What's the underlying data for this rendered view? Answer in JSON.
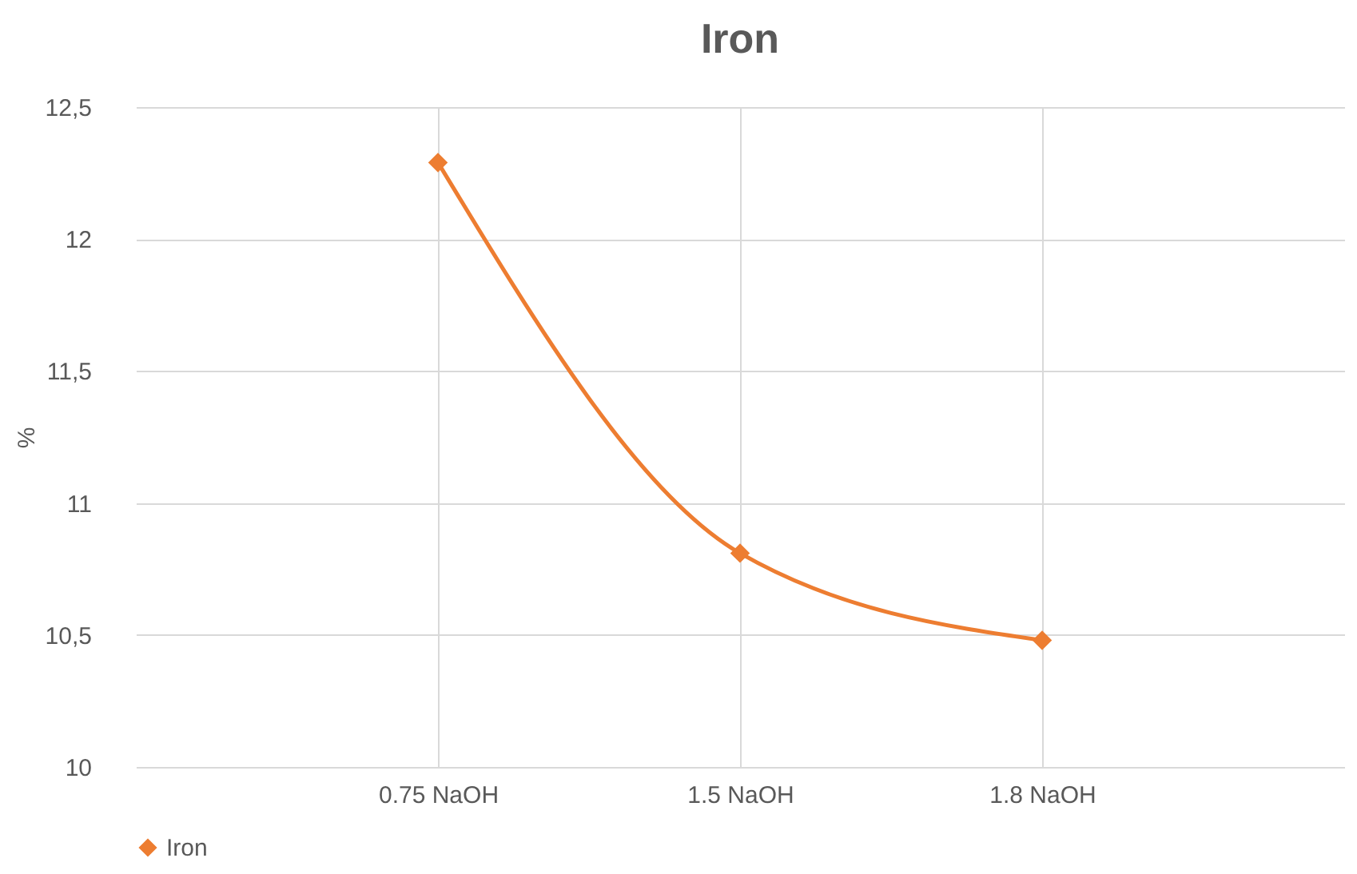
{
  "chart_data": {
    "type": "line",
    "title": "Iron",
    "ylabel": "%",
    "categories": [
      "0.75 NaOH",
      "1.5 NaOH",
      "1.8 NaOH"
    ],
    "series": [
      {
        "name": "Iron",
        "color": "#ed7d31",
        "values": [
          12.29,
          10.81,
          10.48
        ]
      }
    ],
    "ylim": [
      10,
      12.5
    ],
    "yticks": [
      {
        "value": 10,
        "label": "10"
      },
      {
        "value": 10.5,
        "label": "10,5"
      },
      {
        "value": 11,
        "label": "11"
      },
      {
        "value": 11.5,
        "label": "11,5"
      },
      {
        "value": 12,
        "label": "12"
      },
      {
        "value": 12.5,
        "label": "12,5"
      }
    ],
    "grid": true,
    "legend": "bottom",
    "marker": "diamond",
    "line_style": "solid"
  }
}
